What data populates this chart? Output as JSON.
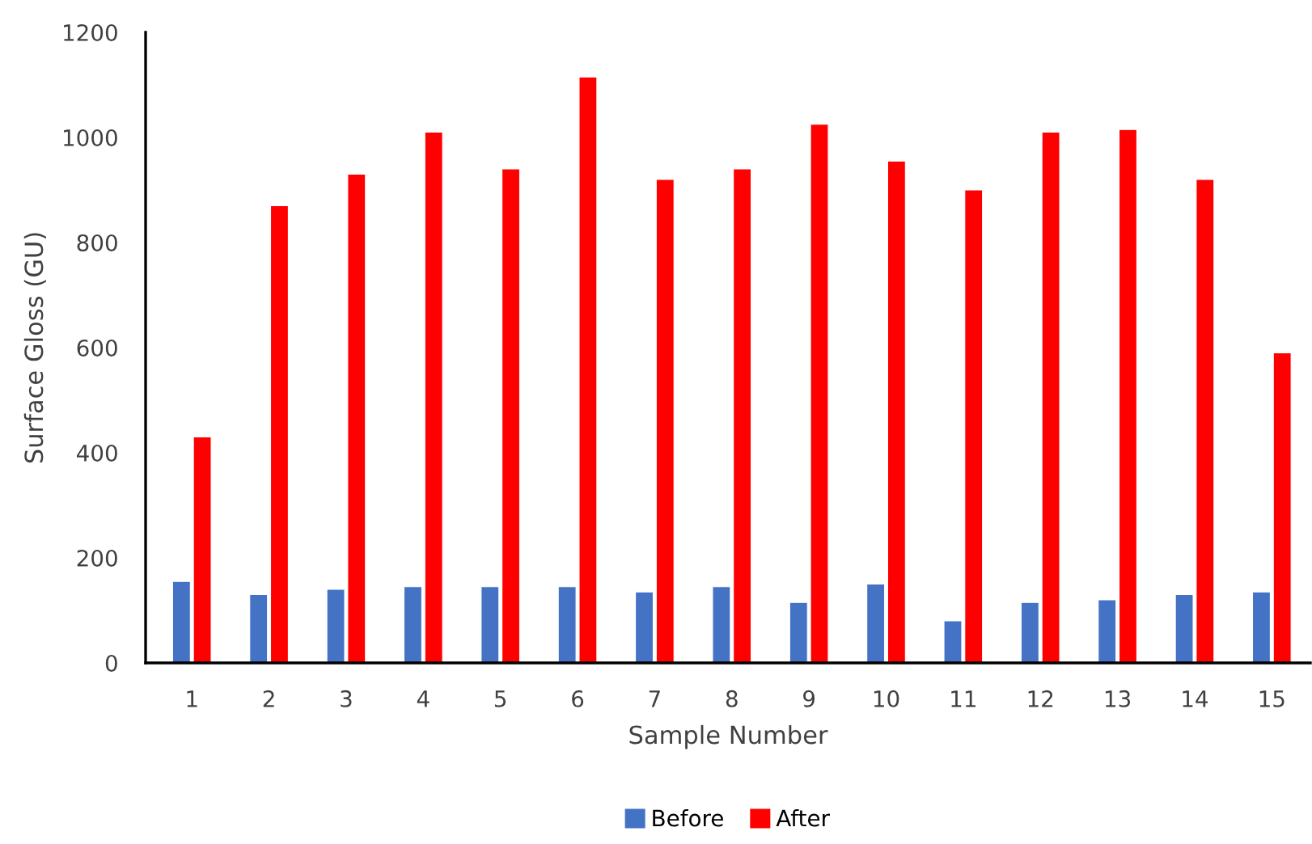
{
  "chart_data": {
    "type": "bar",
    "xlabel": "Sample Number",
    "ylabel": "Surface Gloss (GU)",
    "categories": [
      "1",
      "2",
      "3",
      "4",
      "5",
      "6",
      "7",
      "8",
      "9",
      "10",
      "11",
      "12",
      "13",
      "14",
      "15"
    ],
    "series": [
      {
        "name": "Before",
        "color": "#4472c4",
        "values": [
          155,
          130,
          140,
          145,
          145,
          145,
          135,
          145,
          115,
          150,
          80,
          115,
          120,
          130,
          135
        ]
      },
      {
        "name": "After",
        "color": "#ff0000",
        "values": [
          430,
          870,
          930,
          1010,
          940,
          1115,
          920,
          940,
          1025,
          955,
          900,
          1010,
          1015,
          920,
          590
        ]
      }
    ],
    "ylim": [
      0,
      1200
    ],
    "yticks": [
      0,
      200,
      400,
      600,
      800,
      1000,
      1200
    ],
    "grid": false,
    "legend": "bottom"
  }
}
